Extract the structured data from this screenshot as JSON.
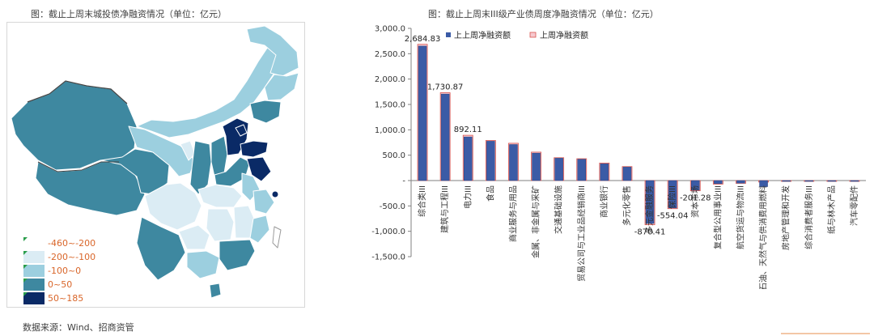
{
  "map_panel": {
    "title": "图：截止上周末城投债净融资情况（单位：亿元）",
    "legend": [
      {
        "label": "-460~-200",
        "color": "#ffffff"
      },
      {
        "label": "-200~-100",
        "color": "#dbecf4"
      },
      {
        "label": "-100~0",
        "color": "#9ccfdf"
      },
      {
        "label": "0~50",
        "color": "#3e88a0"
      },
      {
        "label": "50~185",
        "color": "#0a2a66"
      }
    ],
    "legend_label_color": "#d9662a"
  },
  "chart_panel": {
    "title": "图：截止上周末III级产业债周度净融资情况（单位：亿元）"
  },
  "source": "数据来源：Wind、招商资管",
  "chart_data": {
    "type": "bar",
    "ylim": [
      -1500,
      3000
    ],
    "yticks": [
      "3,000.0",
      "2,500.0",
      "2,000.0",
      "1,500.0",
      "1,000.0",
      "500.0",
      "-",
      "-500.0",
      "-1,000.0",
      "-1,500.0"
    ],
    "ytick_values": [
      3000,
      2500,
      2000,
      1500,
      1000,
      500,
      0,
      -500,
      -1000,
      -1500
    ],
    "categories": [
      "综合类III",
      "建筑与工程III",
      "电力III",
      "食品",
      "商业服务与用品",
      "金属、非金属与采矿",
      "交通基础设施",
      "贸易公司与工业品经销商III",
      "商业银行",
      "多元化零售",
      "多元金融服务",
      "保险III",
      "资本市场",
      "复合型公用事业III",
      "航空货运与物流III",
      "石油、天然气与供消费用燃料",
      "房地产管理和开发",
      "综合消费者服务III",
      "纸与林木产品",
      "汽车零配件"
    ],
    "series": [
      {
        "name": "上上周净融资额",
        "color": "#3b5ba6",
        "values": [
          2650,
          1705,
          860,
          775,
          710,
          540,
          440,
          420,
          330,
          265,
          -845,
          -540,
          -190,
          -60,
          -50,
          -120,
          -10,
          -10,
          -10,
          -10
        ]
      },
      {
        "name": "上周净融资额",
        "color": "#f6c9cf",
        "values": [
          2684.83,
          1730.87,
          892.11,
          790,
          735,
          560,
          450,
          430,
          345,
          275,
          -870.41,
          -554.04,
          -201.28,
          -70,
          -55,
          -30,
          -5,
          -5,
          -5,
          -5
        ]
      }
    ],
    "data_labels": [
      {
        "category": "综合类III",
        "text": "2,684.83"
      },
      {
        "category": "建筑与工程III",
        "text": "1,730.87"
      },
      {
        "category": "电力III",
        "text": "892.11"
      },
      {
        "category": "多元金融服务",
        "text": "-870.41"
      },
      {
        "category": "保险III",
        "text": "-554.04"
      },
      {
        "category": "资本市场",
        "text": "-201.28"
      }
    ],
    "legend_position": "top",
    "grid": false
  }
}
